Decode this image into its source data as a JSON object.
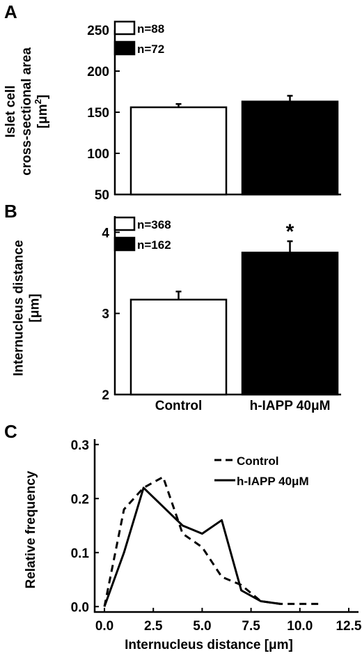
{
  "colors": {
    "ink": "#000000",
    "paper": "#ffffff"
  },
  "chart_data": [
    {
      "panel": "A",
      "type": "bar",
      "ylabel_lines": [
        "Islet cell",
        "cross-sectional area"
      ],
      "ylabel_unit": {
        "pre": "[μm",
        "sup": "2",
        "post": "]"
      },
      "ylim": [
        50,
        250
      ],
      "yticks": [
        50,
        100,
        150,
        200,
        250
      ],
      "categories": [
        "Control",
        "h-IAPP 40μM"
      ],
      "values": [
        156,
        163
      ],
      "errors": [
        4,
        7
      ],
      "fills": [
        "#ffffff",
        "#000000"
      ],
      "legend": [
        "n=88",
        "n=72"
      ],
      "significance": [
        "",
        ""
      ]
    },
    {
      "panel": "B",
      "type": "bar",
      "ylabel_lines": [
        "Internucleus distance"
      ],
      "ylabel_unit": {
        "pre": "[μm]",
        "sup": "",
        "post": ""
      },
      "ylim": [
        2,
        4.2
      ],
      "yticks": [
        2,
        3,
        4
      ],
      "categories": [
        "Control",
        "h-IAPP 40μM"
      ],
      "values": [
        3.17,
        3.75
      ],
      "errors": [
        0.1,
        0.14
      ],
      "fills": [
        "#ffffff",
        "#000000"
      ],
      "legend": [
        "n=368",
        "n=162"
      ],
      "significance": [
        "",
        "*"
      ]
    },
    {
      "panel": "C",
      "type": "line",
      "xlabel": "Internucleus distance [μm]",
      "ylabel": "Relative frequency",
      "xlim": [
        -0.5,
        13
      ],
      "ylim": [
        -0.01,
        0.31
      ],
      "xticks": [
        "0.0",
        "2.5",
        "5.0",
        "7.5",
        "10.0",
        "12.5"
      ],
      "yticks": [
        "0.0",
        "0.1",
        "0.2",
        "0.3"
      ],
      "series": [
        {
          "name": "Control",
          "style": "dashed",
          "x": [
            0,
            1,
            2,
            3,
            4,
            5,
            6,
            7,
            8,
            9,
            10,
            11
          ],
          "y": [
            0.0,
            0.18,
            0.22,
            0.24,
            0.135,
            0.11,
            0.055,
            0.04,
            0.01,
            0.005,
            0.005,
            0.005
          ]
        },
        {
          "name": "h-IAPP 40μM",
          "style": "solid",
          "x": [
            0,
            1,
            2,
            3,
            4,
            5,
            6,
            7,
            8,
            9
          ],
          "y": [
            0.0,
            0.1,
            0.22,
            0.185,
            0.15,
            0.135,
            0.16,
            0.03,
            0.01,
            0.005
          ]
        }
      ]
    }
  ]
}
